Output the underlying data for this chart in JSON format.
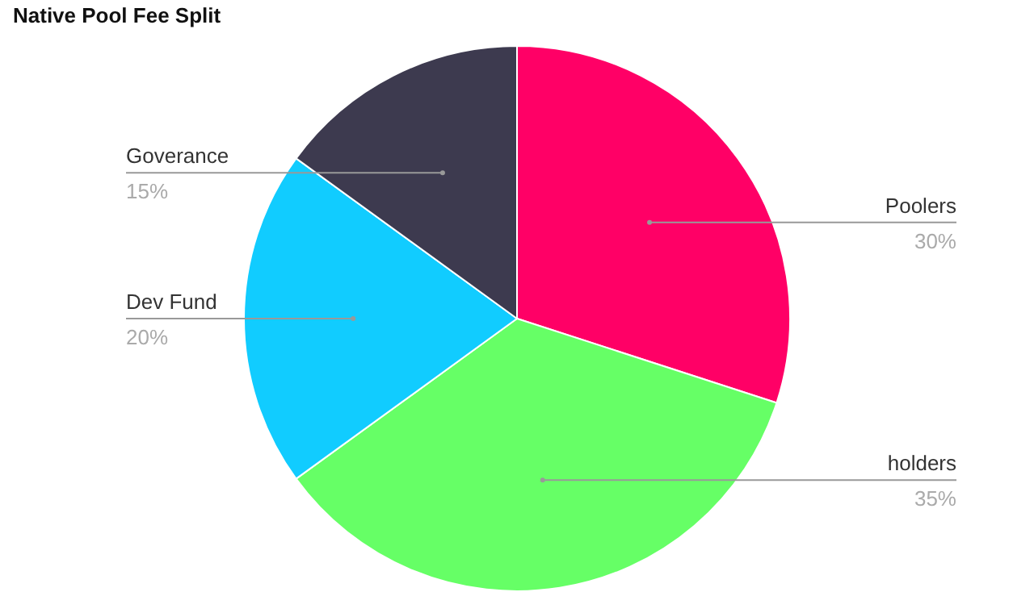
{
  "chart_data": {
    "type": "pie",
    "title": "Native Pool Fee Split",
    "categories": [
      "Poolers",
      "holders",
      "Dev Fund",
      "Goverance"
    ],
    "values": [
      30,
      35,
      20,
      15
    ],
    "value_labels": [
      "30%",
      "35%",
      "20%",
      "15%"
    ],
    "colors": [
      "#ff0066",
      "#66ff66",
      "#11ccff",
      "#3d3a4f"
    ],
    "legend": false
  }
}
